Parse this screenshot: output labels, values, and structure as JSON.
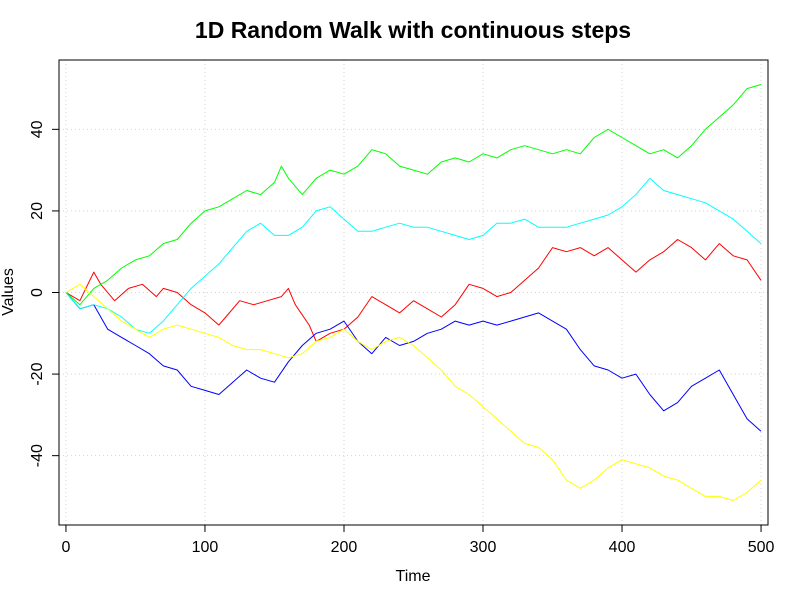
{
  "chart_data": {
    "type": "line",
    "title": "1D Random Walk with continuous steps",
    "xlabel": "Time",
    "ylabel": "Values",
    "xlim": [
      -5,
      505
    ],
    "ylim": [
      -57,
      57
    ],
    "xticks": [
      0,
      100,
      200,
      300,
      400,
      500
    ],
    "yticks": [
      -40,
      -20,
      0,
      20,
      40
    ],
    "grid": true,
    "series": [
      {
        "color": "#ff0000",
        "points": [
          [
            0,
            0
          ],
          [
            10,
            -2
          ],
          [
            20,
            5
          ],
          [
            25,
            2
          ],
          [
            35,
            -2
          ],
          [
            45,
            1
          ],
          [
            55,
            2
          ],
          [
            65,
            -1
          ],
          [
            70,
            1
          ],
          [
            80,
            0
          ],
          [
            90,
            -3
          ],
          [
            100,
            -5
          ],
          [
            110,
            -8
          ],
          [
            115,
            -6
          ],
          [
            125,
            -2
          ],
          [
            135,
            -3
          ],
          [
            145,
            -2
          ],
          [
            155,
            -1
          ],
          [
            160,
            1
          ],
          [
            165,
            -3
          ],
          [
            175,
            -8
          ],
          [
            180,
            -12
          ],
          [
            190,
            -10
          ],
          [
            200,
            -9
          ],
          [
            210,
            -6
          ],
          [
            220,
            -1
          ],
          [
            230,
            -3
          ],
          [
            240,
            -5
          ],
          [
            250,
            -2
          ],
          [
            260,
            -4
          ],
          [
            270,
            -6
          ],
          [
            280,
            -3
          ],
          [
            290,
            2
          ],
          [
            300,
            1
          ],
          [
            310,
            -1
          ],
          [
            320,
            0
          ],
          [
            330,
            3
          ],
          [
            340,
            6
          ],
          [
            350,
            11
          ],
          [
            360,
            10
          ],
          [
            370,
            11
          ],
          [
            380,
            9
          ],
          [
            390,
            11
          ],
          [
            400,
            8
          ],
          [
            410,
            5
          ],
          [
            420,
            8
          ],
          [
            430,
            10
          ],
          [
            440,
            13
          ],
          [
            450,
            11
          ],
          [
            460,
            8
          ],
          [
            470,
            12
          ],
          [
            480,
            9
          ],
          [
            490,
            8
          ],
          [
            500,
            3
          ]
        ]
      },
      {
        "color": "#00ff00",
        "points": [
          [
            0,
            0
          ],
          [
            10,
            -3
          ],
          [
            20,
            1
          ],
          [
            30,
            3
          ],
          [
            40,
            6
          ],
          [
            50,
            8
          ],
          [
            60,
            9
          ],
          [
            70,
            12
          ],
          [
            80,
            13
          ],
          [
            90,
            17
          ],
          [
            100,
            20
          ],
          [
            110,
            21
          ],
          [
            120,
            23
          ],
          [
            130,
            25
          ],
          [
            140,
            24
          ],
          [
            150,
            27
          ],
          [
            155,
            31
          ],
          [
            160,
            28
          ],
          [
            170,
            24
          ],
          [
            180,
            28
          ],
          [
            190,
            30
          ],
          [
            200,
            29
          ],
          [
            210,
            31
          ],
          [
            220,
            35
          ],
          [
            230,
            34
          ],
          [
            240,
            31
          ],
          [
            250,
            30
          ],
          [
            260,
            29
          ],
          [
            270,
            32
          ],
          [
            280,
            33
          ],
          [
            290,
            32
          ],
          [
            300,
            34
          ],
          [
            310,
            33
          ],
          [
            320,
            35
          ],
          [
            330,
            36
          ],
          [
            340,
            35
          ],
          [
            350,
            34
          ],
          [
            360,
            35
          ],
          [
            370,
            34
          ],
          [
            380,
            38
          ],
          [
            390,
            40
          ],
          [
            400,
            38
          ],
          [
            410,
            36
          ],
          [
            420,
            34
          ],
          [
            430,
            35
          ],
          [
            440,
            33
          ],
          [
            450,
            36
          ],
          [
            460,
            40
          ],
          [
            470,
            43
          ],
          [
            480,
            46
          ],
          [
            490,
            50
          ],
          [
            500,
            51
          ]
        ]
      },
      {
        "color": "#0000ff",
        "points": [
          [
            0,
            0
          ],
          [
            10,
            -4
          ],
          [
            20,
            -3
          ],
          [
            30,
            -9
          ],
          [
            40,
            -11
          ],
          [
            50,
            -13
          ],
          [
            60,
            -15
          ],
          [
            70,
            -18
          ],
          [
            80,
            -19
          ],
          [
            90,
            -23
          ],
          [
            100,
            -24
          ],
          [
            110,
            -25
          ],
          [
            120,
            -22
          ],
          [
            130,
            -19
          ],
          [
            140,
            -21
          ],
          [
            150,
            -22
          ],
          [
            160,
            -17
          ],
          [
            170,
            -13
          ],
          [
            180,
            -10
          ],
          [
            190,
            -9
          ],
          [
            200,
            -7
          ],
          [
            210,
            -12
          ],
          [
            220,
            -15
          ],
          [
            230,
            -11
          ],
          [
            240,
            -13
          ],
          [
            250,
            -12
          ],
          [
            260,
            -10
          ],
          [
            270,
            -9
          ],
          [
            280,
            -7
          ],
          [
            290,
            -8
          ],
          [
            300,
            -7
          ],
          [
            310,
            -8
          ],
          [
            320,
            -7
          ],
          [
            330,
            -6
          ],
          [
            340,
            -5
          ],
          [
            350,
            -7
          ],
          [
            360,
            -9
          ],
          [
            370,
            -14
          ],
          [
            380,
            -18
          ],
          [
            390,
            -19
          ],
          [
            400,
            -21
          ],
          [
            410,
            -20
          ],
          [
            420,
            -25
          ],
          [
            430,
            -29
          ],
          [
            440,
            -27
          ],
          [
            450,
            -23
          ],
          [
            460,
            -21
          ],
          [
            470,
            -19
          ],
          [
            480,
            -25
          ],
          [
            490,
            -31
          ],
          [
            500,
            -34
          ]
        ]
      },
      {
        "color": "#00ffff",
        "points": [
          [
            0,
            0
          ],
          [
            10,
            -4
          ],
          [
            20,
            -3
          ],
          [
            30,
            -4
          ],
          [
            40,
            -6
          ],
          [
            50,
            -9
          ],
          [
            60,
            -10
          ],
          [
            70,
            -7
          ],
          [
            80,
            -3
          ],
          [
            90,
            1
          ],
          [
            100,
            4
          ],
          [
            110,
            7
          ],
          [
            120,
            11
          ],
          [
            130,
            15
          ],
          [
            140,
            17
          ],
          [
            150,
            14
          ],
          [
            160,
            14
          ],
          [
            170,
            16
          ],
          [
            180,
            20
          ],
          [
            190,
            21
          ],
          [
            200,
            18
          ],
          [
            210,
            15
          ],
          [
            220,
            15
          ],
          [
            230,
            16
          ],
          [
            240,
            17
          ],
          [
            250,
            16
          ],
          [
            260,
            16
          ],
          [
            270,
            15
          ],
          [
            280,
            14
          ],
          [
            290,
            13
          ],
          [
            300,
            14
          ],
          [
            310,
            17
          ],
          [
            320,
            17
          ],
          [
            330,
            18
          ],
          [
            340,
            16
          ],
          [
            350,
            16
          ],
          [
            360,
            16
          ],
          [
            370,
            17
          ],
          [
            380,
            18
          ],
          [
            390,
            19
          ],
          [
            400,
            21
          ],
          [
            410,
            24
          ],
          [
            420,
            28
          ],
          [
            430,
            25
          ],
          [
            440,
            24
          ],
          [
            450,
            23
          ],
          [
            460,
            22
          ],
          [
            470,
            20
          ],
          [
            480,
            18
          ],
          [
            490,
            15
          ],
          [
            500,
            12
          ]
        ]
      },
      {
        "color": "#ffff00",
        "points": [
          [
            0,
            0
          ],
          [
            10,
            2
          ],
          [
            20,
            -1
          ],
          [
            30,
            -4
          ],
          [
            40,
            -7
          ],
          [
            50,
            -9
          ],
          [
            60,
            -11
          ],
          [
            70,
            -9
          ],
          [
            80,
            -8
          ],
          [
            90,
            -9
          ],
          [
            100,
            -10
          ],
          [
            110,
            -11
          ],
          [
            120,
            -13
          ],
          [
            130,
            -14
          ],
          [
            140,
            -14
          ],
          [
            150,
            -15
          ],
          [
            160,
            -16
          ],
          [
            170,
            -15
          ],
          [
            180,
            -12
          ],
          [
            190,
            -11
          ],
          [
            200,
            -9
          ],
          [
            210,
            -12
          ],
          [
            220,
            -14
          ],
          [
            230,
            -12
          ],
          [
            240,
            -11
          ],
          [
            250,
            -13
          ],
          [
            260,
            -16
          ],
          [
            270,
            -19
          ],
          [
            280,
            -23
          ],
          [
            290,
            -25
          ],
          [
            300,
            -28
          ],
          [
            310,
            -31
          ],
          [
            320,
            -34
          ],
          [
            330,
            -37
          ],
          [
            340,
            -38
          ],
          [
            350,
            -41
          ],
          [
            360,
            -46
          ],
          [
            370,
            -48
          ],
          [
            380,
            -46
          ],
          [
            390,
            -43
          ],
          [
            400,
            -41
          ],
          [
            410,
            -42
          ],
          [
            420,
            -43
          ],
          [
            430,
            -45
          ],
          [
            440,
            -46
          ],
          [
            450,
            -48
          ],
          [
            460,
            -50
          ],
          [
            470,
            -50
          ],
          [
            480,
            -51
          ],
          [
            490,
            -49
          ],
          [
            500,
            -46
          ]
        ]
      }
    ]
  }
}
